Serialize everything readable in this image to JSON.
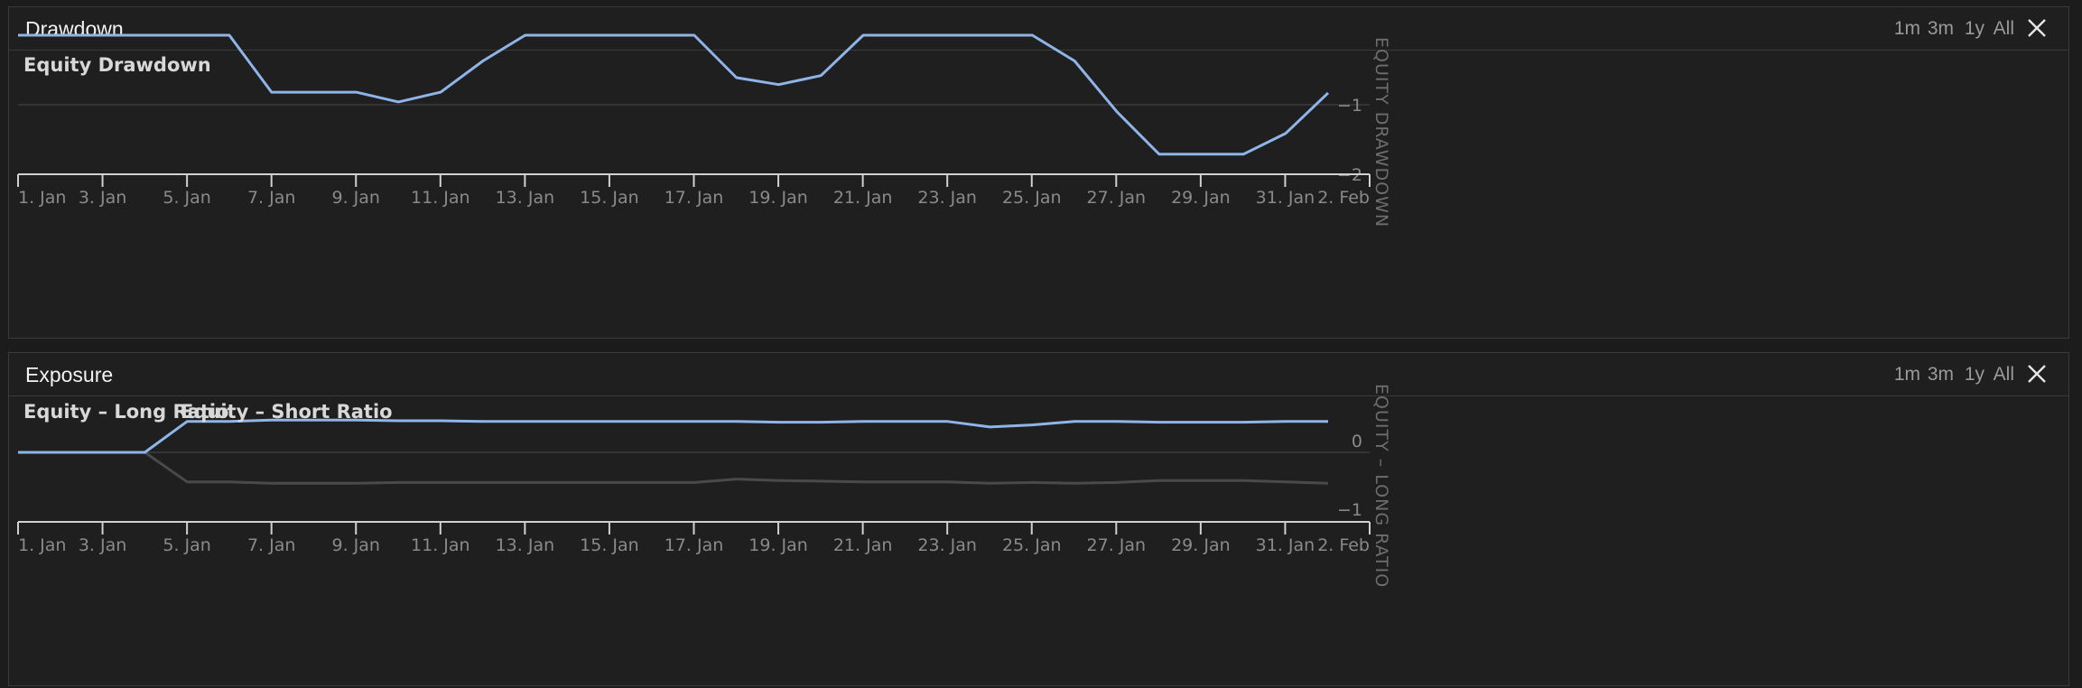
{
  "range_buttons": [
    "1m",
    "3m",
    "1y",
    "All"
  ],
  "x_tick_labels": [
    "1. Jan",
    "3. Jan",
    "5. Jan",
    "7. Jan",
    "9. Jan",
    "11. Jan",
    "13. Jan",
    "15. Jan",
    "17. Jan",
    "19. Jan",
    "21. Jan",
    "23. Jan",
    "25. Jan",
    "27. Jan",
    "29. Jan",
    "31. Jan",
    "2. Feb"
  ],
  "colors": {
    "series_blue": "#8fb4e8",
    "series_gray": "#4a4a4a",
    "grid": "#3c3c3d",
    "axis": "#d0d0d0"
  },
  "panels": {
    "drawdown": {
      "title": "Drawdown",
      "close_icon": "close-icon"
    },
    "exposure": {
      "title": "Exposure",
      "close_icon": "close-icon"
    }
  },
  "chart_data": [
    {
      "type": "line",
      "title": "",
      "ylabel": "EQUITY DRAWDOWN",
      "x": [
        "1. Jan",
        "2. Jan",
        "3. Jan",
        "4. Jan",
        "5. Jan",
        "6. Jan",
        "7. Jan",
        "8. Jan",
        "9. Jan",
        "10. Jan",
        "11. Jan",
        "12. Jan",
        "13. Jan",
        "14. Jan",
        "15. Jan",
        "16. Jan",
        "17. Jan",
        "18. Jan",
        "19. Jan",
        "20. Jan",
        "21. Jan",
        "22. Jan",
        "23. Jan",
        "24. Jan",
        "25. Jan",
        "26. Jan",
        "27. Jan",
        "28. Jan",
        "29. Jan",
        "30. Jan",
        "31. Jan",
        "1. Feb"
      ],
      "ylim": [
        -2,
        0
      ],
      "yticks": [
        -1,
        -2
      ],
      "ytick_labels": [
        "−1",
        "−2"
      ],
      "series": [
        {
          "name": "Equity Drawdown",
          "values": [
            0,
            0,
            0,
            0,
            0,
            0,
            -0.82,
            -0.82,
            -0.82,
            -0.96,
            -0.82,
            -0.37,
            0,
            0,
            0,
            0,
            0,
            -0.61,
            -0.71,
            -0.58,
            0,
            0,
            0,
            0,
            0,
            -0.37,
            -1.1,
            -1.71,
            -1.71,
            -1.71,
            -1.41,
            -0.83
          ]
        }
      ]
    },
    {
      "type": "line",
      "title": "",
      "ylabel": "EQUITY – LONG RATIO",
      "x": [
        "1. Jan",
        "2. Jan",
        "3. Jan",
        "4. Jan",
        "5. Jan",
        "6. Jan",
        "7. Jan",
        "8. Jan",
        "9. Jan",
        "10. Jan",
        "11. Jan",
        "12. Jan",
        "13. Jan",
        "14. Jan",
        "15. Jan",
        "16. Jan",
        "17. Jan",
        "18. Jan",
        "19. Jan",
        "20. Jan",
        "21. Jan",
        "22. Jan",
        "23. Jan",
        "24. Jan",
        "25. Jan",
        "26. Jan",
        "27. Jan",
        "28. Jan",
        "29. Jan",
        "30. Jan",
        "31. Jan",
        "1. Feb"
      ],
      "ylim": [
        -1,
        0.5
      ],
      "yticks": [
        0,
        -1
      ],
      "ytick_labels": [
        "0",
        "−1"
      ],
      "series": [
        {
          "name": "Equity – Long Ratio",
          "values": [
            0,
            0,
            0,
            0,
            0.45,
            0.45,
            0.47,
            0.47,
            0.47,
            0.46,
            0.46,
            0.45,
            0.45,
            0.45,
            0.45,
            0.45,
            0.45,
            0.45,
            0.44,
            0.44,
            0.45,
            0.45,
            0.45,
            0.37,
            0.4,
            0.45,
            0.45,
            0.44,
            0.44,
            0.44,
            0.45,
            0.45
          ]
        },
        {
          "name": "Equity – Short Ratio",
          "values": [
            0,
            0,
            0,
            0,
            -0.43,
            -0.43,
            -0.45,
            -0.45,
            -0.45,
            -0.44,
            -0.44,
            -0.44,
            -0.44,
            -0.44,
            -0.44,
            -0.44,
            -0.44,
            -0.39,
            -0.41,
            -0.42,
            -0.43,
            -0.43,
            -0.43,
            -0.45,
            -0.44,
            -0.45,
            -0.44,
            -0.41,
            -0.41,
            -0.41,
            -0.43,
            -0.45
          ]
        }
      ]
    }
  ]
}
